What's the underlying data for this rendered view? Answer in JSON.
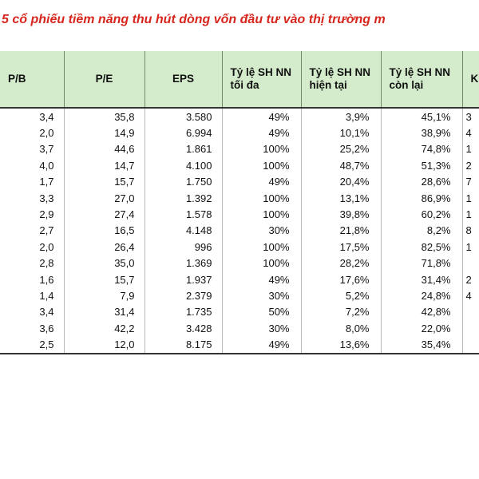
{
  "title": "5 cổ phiếu tiềm năng thu hút dòng vốn đầu tư vào thị trường m",
  "headers": [
    "P/B",
    "P/E",
    "EPS",
    "Tỷ lệ SH NN tối đa",
    "Tỷ lệ SH NN hiện tại",
    "Tỷ lệ SH NN còn lại",
    "Kh"
  ],
  "rows": [
    {
      "pb": "3,4",
      "pe": "35,8",
      "eps": "3.580",
      "max": "49%",
      "cur": "3,9%",
      "rem": "45,1%",
      "k": "3"
    },
    {
      "pb": "2,0",
      "pe": "14,9",
      "eps": "6.994",
      "max": "49%",
      "cur": "10,1%",
      "rem": "38,9%",
      "k": "4"
    },
    {
      "pb": "3,7",
      "pe": "44,6",
      "eps": "1.861",
      "max": "100%",
      "cur": "25,2%",
      "rem": "74,8%",
      "k": "1"
    },
    {
      "pb": "4,0",
      "pe": "14,7",
      "eps": "4.100",
      "max": "100%",
      "cur": "48,7%",
      "rem": "51,3%",
      "k": "2"
    },
    {
      "pb": "1,7",
      "pe": "15,7",
      "eps": "1.750",
      "max": "49%",
      "cur": "20,4%",
      "rem": "28,6%",
      "k": "7"
    },
    {
      "pb": "3,3",
      "pe": "27,0",
      "eps": "1.392",
      "max": "100%",
      "cur": "13,1%",
      "rem": "86,9%",
      "k": "1"
    },
    {
      "pb": "2,9",
      "pe": "27,4",
      "eps": "1.578",
      "max": "100%",
      "cur": "39,8%",
      "rem": "60,2%",
      "k": "1"
    },
    {
      "pb": "2,7",
      "pe": "16,5",
      "eps": "4.148",
      "max": "30%",
      "cur": "21,8%",
      "rem": "8,2%",
      "k": "8"
    },
    {
      "pb": "2,0",
      "pe": "26,4",
      "eps": "996",
      "max": "100%",
      "cur": "17,5%",
      "rem": "82,5%",
      "k": "1"
    },
    {
      "pb": "2,8",
      "pe": "35,0",
      "eps": "1.369",
      "max": "100%",
      "cur": "28,2%",
      "rem": "71,8%",
      "k": ""
    },
    {
      "pb": "1,6",
      "pe": "15,7",
      "eps": "1.937",
      "max": "49%",
      "cur": "17,6%",
      "rem": "31,4%",
      "k": "2"
    },
    {
      "pb": "1,4",
      "pe": "7,9",
      "eps": "2.379",
      "max": "30%",
      "cur": "5,2%",
      "rem": "24,8%",
      "k": "4"
    },
    {
      "pb": "3,4",
      "pe": "31,4",
      "eps": "1.735",
      "max": "50%",
      "cur": "7,2%",
      "rem": "42,8%",
      "k": ""
    },
    {
      "pb": "3,6",
      "pe": "42,2",
      "eps": "3.428",
      "max": "30%",
      "cur": "8,0%",
      "rem": "22,0%",
      "k": ""
    },
    {
      "pb": "2,5",
      "pe": "12,0",
      "eps": "8.175",
      "max": "49%",
      "cur": "13,6%",
      "rem": "35,4%",
      "k": ""
    }
  ]
}
